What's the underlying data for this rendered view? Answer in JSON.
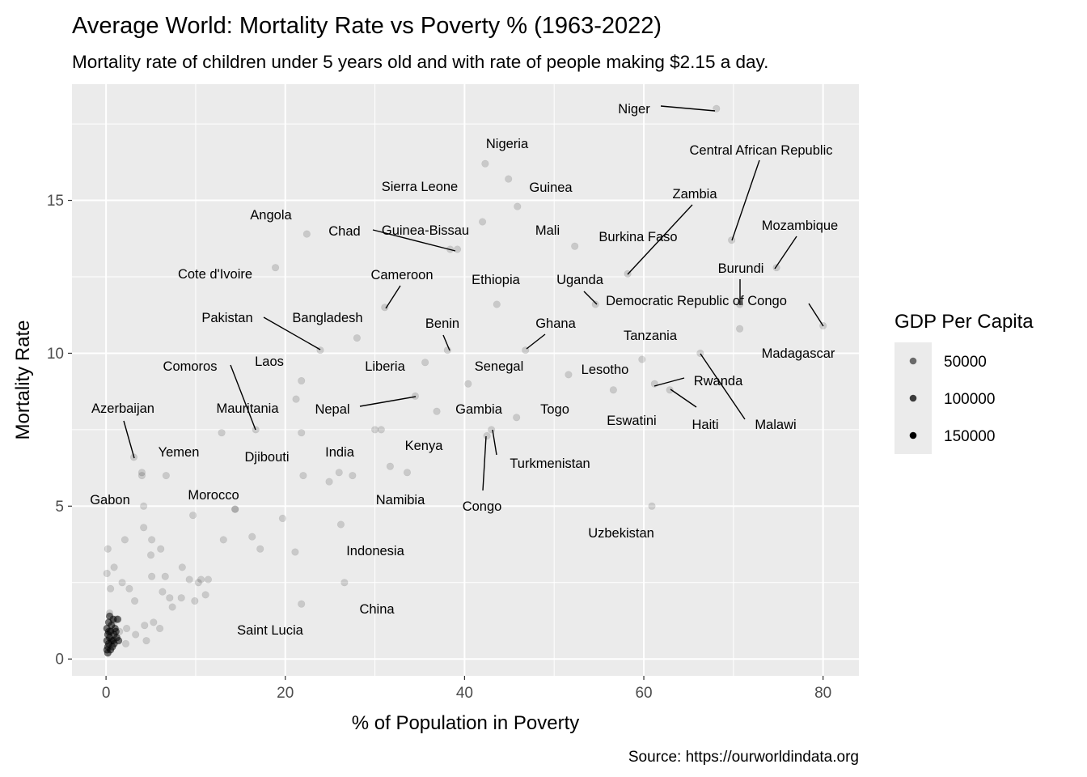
{
  "chart_data": {
    "type": "scatter",
    "title": "Average World: Mortality Rate vs Poverty % (1963-2022)",
    "subtitle": "Mortality rate of children under 5 years old and with rate of people making  $2.15 a day.",
    "xlabel": "% of Population in Poverty",
    "ylabel": "Mortality Rate",
    "caption": "Source: https://ourworldindata.org",
    "xlim": [
      -3.8,
      84
    ],
    "ylim": [
      -0.55,
      18.8
    ],
    "x_ticks": [
      0,
      20,
      40,
      60,
      80
    ],
    "y_ticks": [
      0,
      5,
      10,
      15
    ],
    "grid": true,
    "point_color": "#000000",
    "panel_color": "#ebebeb",
    "grid_color": "#ffffff",
    "legend": {
      "title": "GDP Per Capita",
      "position": "right",
      "entries": [
        {
          "label": "50000",
          "alpha": 0.55
        },
        {
          "label": "100000",
          "alpha": 0.75
        },
        {
          "label": "150000",
          "alpha": 1.0
        }
      ]
    },
    "labeled_points": [
      {
        "name": "Niger",
        "x": 68.1,
        "y": 18.0
      },
      {
        "name": "Nigeria",
        "x": 42.3,
        "y": 16.2
      },
      {
        "name": "Sierra Leone",
        "x": 44.9,
        "y": 15.7
      },
      {
        "name": "Guinea",
        "x": 45.9,
        "y": 14.8
      },
      {
        "name": "Central African Republic",
        "x": 69.8,
        "y": 13.7
      },
      {
        "name": "Angola",
        "x": 22.4,
        "y": 13.9
      },
      {
        "name": "Mali",
        "x": 42.0,
        "y": 14.3
      },
      {
        "name": "Chad",
        "x": 38.4,
        "y": 13.4
      },
      {
        "name": "Guinea-Bissau",
        "x": 39.2,
        "y": 13.4
      },
      {
        "name": "Zambia",
        "x": 58.2,
        "y": 12.6
      },
      {
        "name": "Burkina Faso",
        "x": 52.3,
        "y": 13.5
      },
      {
        "name": "Mozambique",
        "x": 74.8,
        "y": 12.8
      },
      {
        "name": "Cote d'Ivoire",
        "x": 18.9,
        "y": 12.8
      },
      {
        "name": "Burundi",
        "x": 70.7,
        "y": 11.6
      },
      {
        "name": "Cameroon",
        "x": 31.1,
        "y": 11.5
      },
      {
        "name": "Ethiopia",
        "x": 43.6,
        "y": 11.6
      },
      {
        "name": "Uganda",
        "x": 54.6,
        "y": 11.6
      },
      {
        "name": "Democratic Republic of Congo",
        "x": 80.0,
        "y": 10.9
      },
      {
        "name": "Pakistan",
        "x": 23.9,
        "y": 10.1
      },
      {
        "name": "Bangladesh",
        "x": 28.0,
        "y": 10.5
      },
      {
        "name": "Benin",
        "x": 38.1,
        "y": 10.1
      },
      {
        "name": "Ghana",
        "x": 46.8,
        "y": 10.1
      },
      {
        "name": "Madagascar",
        "x": 70.7,
        "y": 10.8
      },
      {
        "name": "Tanzania",
        "x": 59.8,
        "y": 9.8
      },
      {
        "name": "Malawi",
        "x": 66.3,
        "y": 10.0
      },
      {
        "name": "Comoros",
        "x": 16.7,
        "y": 7.5
      },
      {
        "name": "Laos",
        "x": 21.8,
        "y": 9.1
      },
      {
        "name": "Liberia",
        "x": 35.6,
        "y": 9.7
      },
      {
        "name": "Senegal",
        "x": 40.4,
        "y": 9.0
      },
      {
        "name": "Lesotho",
        "x": 51.6,
        "y": 9.3
      },
      {
        "name": "Rwanda",
        "x": 61.2,
        "y": 9.0
      },
      {
        "name": "Haiti",
        "x": 62.9,
        "y": 8.8
      },
      {
        "name": "Azerbaijan",
        "x": 3.1,
        "y": 6.6
      },
      {
        "name": "Mauritania",
        "x": 21.2,
        "y": 8.5
      },
      {
        "name": "Nepal",
        "x": 34.5,
        "y": 8.6
      },
      {
        "name": "Gambia",
        "x": 36.9,
        "y": 8.1
      },
      {
        "name": "Togo",
        "x": 45.8,
        "y": 7.9
      },
      {
        "name": "Eswatini",
        "x": 56.6,
        "y": 8.8
      },
      {
        "name": "Yemen",
        "x": 4.0,
        "y": 6.1
      },
      {
        "name": "Djibouti",
        "x": 12.9,
        "y": 7.4
      },
      {
        "name": "India",
        "x": 26.0,
        "y": 6.1
      },
      {
        "name": "Kenya",
        "x": 33.6,
        "y": 6.1
      },
      {
        "name": "Turkmenistan",
        "x": 43.0,
        "y": 7.5
      },
      {
        "name": "Congo",
        "x": 42.5,
        "y": 7.3
      },
      {
        "name": "Gabon",
        "x": 4.2,
        "y": 5.0
      },
      {
        "name": "Morocco",
        "x": 14.4,
        "y": 4.9
      },
      {
        "name": "Namibia",
        "x": 31.7,
        "y": 6.3
      },
      {
        "name": "Uzbekistan",
        "x": 60.9,
        "y": 5.0
      },
      {
        "name": "Indonesia",
        "x": 26.2,
        "y": 4.4
      },
      {
        "name": "China",
        "x": 26.6,
        "y": 2.5
      },
      {
        "name": "Saint Lucia",
        "x": 21.8,
        "y": 1.8
      }
    ],
    "unlabeled_points": [
      [
        24.9,
        5.8
      ],
      [
        22.0,
        6.0
      ],
      [
        27.5,
        6.0
      ],
      [
        19.7,
        4.6
      ],
      [
        17.2,
        3.6
      ],
      [
        16.3,
        4.0
      ],
      [
        21.1,
        3.5
      ],
      [
        13.1,
        3.9
      ],
      [
        30.0,
        7.5
      ],
      [
        30.7,
        7.5
      ],
      [
        21.8,
        7.4
      ],
      [
        0.2,
        3.6
      ],
      [
        0.1,
        2.8
      ],
      [
        0.9,
        3.0
      ],
      [
        0.5,
        2.3
      ],
      [
        2.1,
        3.9
      ],
      [
        4.2,
        4.3
      ],
      [
        5.1,
        3.9
      ],
      [
        6.1,
        3.6
      ],
      [
        5.0,
        3.4
      ],
      [
        1.8,
        2.5
      ],
      [
        2.6,
        2.3
      ],
      [
        3.2,
        1.9
      ],
      [
        5.1,
        2.7
      ],
      [
        6.6,
        2.7
      ],
      [
        6.3,
        2.2
      ],
      [
        7.1,
        2.0
      ],
      [
        8.5,
        3.0
      ],
      [
        9.3,
        2.6
      ],
      [
        10.6,
        2.6
      ],
      [
        11.4,
        2.6
      ],
      [
        10.3,
        2.5
      ],
      [
        11.1,
        2.1
      ],
      [
        8.4,
        2.0
      ],
      [
        9.9,
        1.9
      ],
      [
        7.4,
        1.7
      ],
      [
        5.3,
        1.2
      ],
      [
        6.0,
        1.0
      ],
      [
        4.3,
        1.1
      ],
      [
        3.3,
        0.8
      ],
      [
        2.3,
        1.0
      ],
      [
        4.5,
        0.6
      ],
      [
        1.1,
        1.3
      ],
      [
        0.4,
        1.5
      ],
      [
        0.8,
        1.2
      ],
      [
        1.5,
        0.9
      ],
      [
        2.2,
        0.5
      ],
      [
        9.7,
        4.7
      ],
      [
        4.0,
        6.0
      ],
      [
        6.7,
        6.0
      ],
      [
        14.4,
        4.9
      ]
    ],
    "dense_points": [
      [
        0.1,
        0.3
      ],
      [
        0.2,
        0.4
      ],
      [
        0.3,
        0.5
      ],
      [
        0.1,
        0.6
      ],
      [
        0.4,
        0.7
      ],
      [
        0.2,
        0.8
      ],
      [
        0.5,
        0.9
      ],
      [
        0.1,
        1.0
      ],
      [
        0.6,
        1.1
      ],
      [
        0.3,
        1.2
      ],
      [
        0.8,
        0.6
      ],
      [
        0.9,
        0.8
      ],
      [
        1.0,
        1.0
      ],
      [
        1.2,
        0.7
      ],
      [
        0.7,
        0.4
      ],
      [
        1.3,
        1.3
      ],
      [
        0.4,
        1.4
      ],
      [
        0.2,
        0.2
      ],
      [
        0.6,
        0.6
      ],
      [
        0.9,
        0.5
      ],
      [
        1.1,
        0.9
      ],
      [
        0.3,
        0.9
      ],
      [
        0.5,
        0.3
      ],
      [
        1.4,
        0.6
      ],
      [
        0.8,
        1.3
      ]
    ]
  }
}
